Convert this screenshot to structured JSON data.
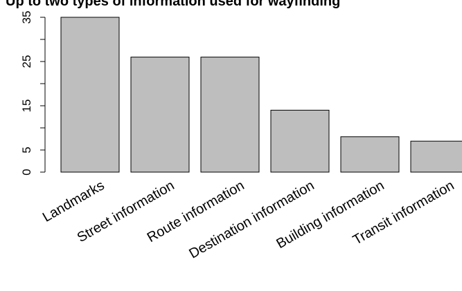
{
  "chart_data": {
    "type": "bar",
    "title": "Up to two types of information used for wayfinding",
    "categories": [
      "Landmarks",
      "Street information",
      "Route information",
      "Destination information",
      "Building information",
      "Transit information"
    ],
    "values": [
      35,
      26,
      26,
      14,
      8,
      7
    ],
    "ylim": [
      0,
      36
    ],
    "yticks": [
      0,
      5,
      15,
      25,
      35
    ],
    "minor_ticks": [
      10,
      20,
      30
    ],
    "xlabel": "",
    "ylabel": "",
    "grid": false,
    "legend": "none",
    "bar_color": "#bebebe",
    "bar_border": "#000000"
  }
}
